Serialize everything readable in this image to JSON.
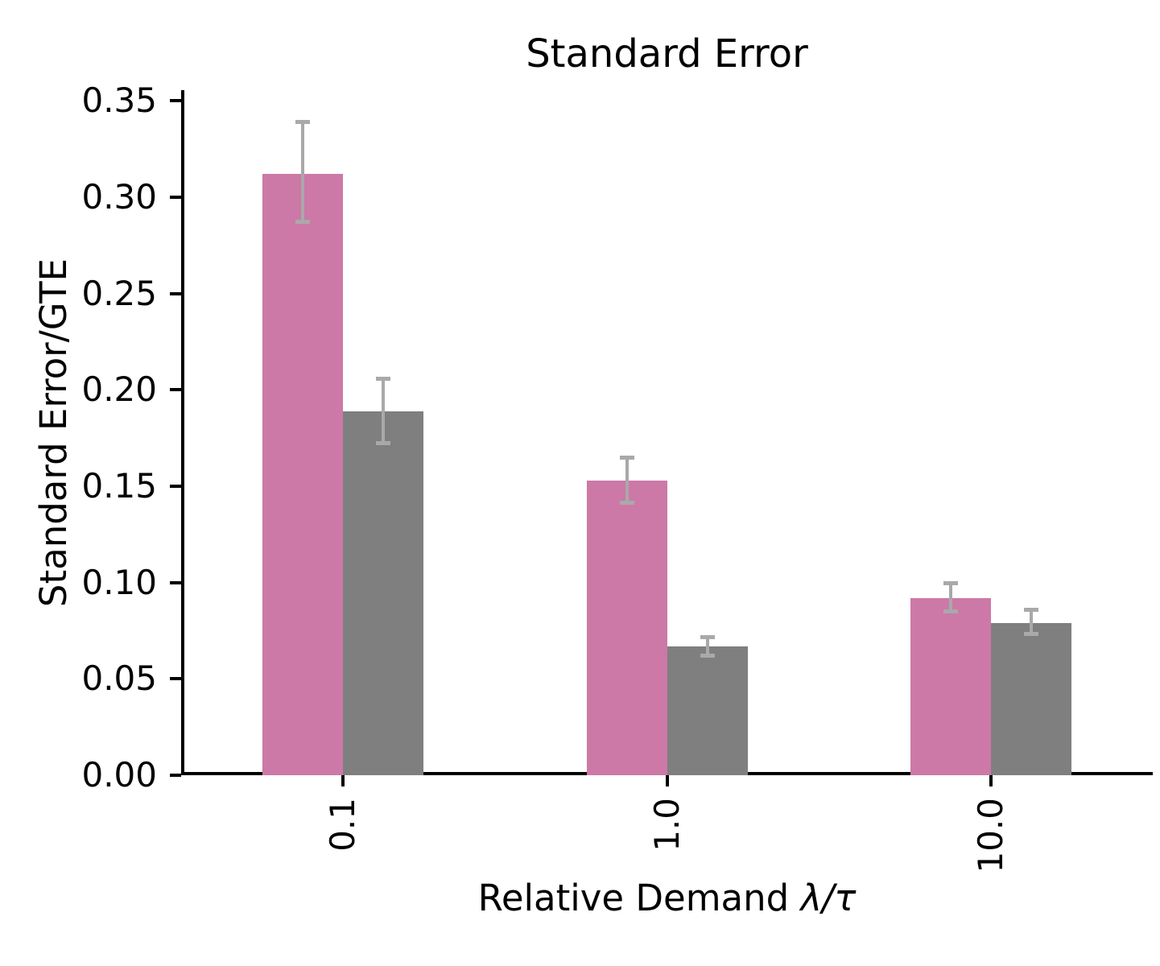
{
  "labels": {
    "title": "Standard Error",
    "ylabel": "Standard Error/GTE",
    "xlabel_text": "Relative Demand ",
    "xlabel_math": "λ/τ"
  },
  "chart_data": {
    "type": "bar",
    "title": "Standard Error",
    "xlabel": "Relative Demand λ/τ",
    "ylabel": "Standard Error/GTE",
    "categories": [
      "0.1",
      "1.0",
      "10.0"
    ],
    "series": [
      {
        "name": "pink",
        "color": "#CC79A7",
        "values": [
          0.312,
          0.153,
          0.092
        ],
        "err_low": [
          0.287,
          0.141,
          0.085
        ],
        "err_high": [
          0.339,
          0.165,
          0.1
        ]
      },
      {
        "name": "gray",
        "color": "#7F7F7F",
        "values": [
          0.189,
          0.067,
          0.079
        ],
        "err_low": [
          0.172,
          0.062,
          0.073
        ],
        "err_high": [
          0.206,
          0.072,
          0.086
        ]
      }
    ],
    "errorbar_color": "#A9A9A9",
    "ylim": [
      0,
      0.3555
    ],
    "yticks": [
      0.0,
      0.05,
      0.1,
      0.15,
      0.2,
      0.25,
      0.3,
      0.35
    ],
    "ytick_labels": [
      "0.00",
      "0.05",
      "0.10",
      "0.15",
      "0.20",
      "0.25",
      "0.30",
      "0.35"
    ],
    "grid": false,
    "legend": null
  }
}
